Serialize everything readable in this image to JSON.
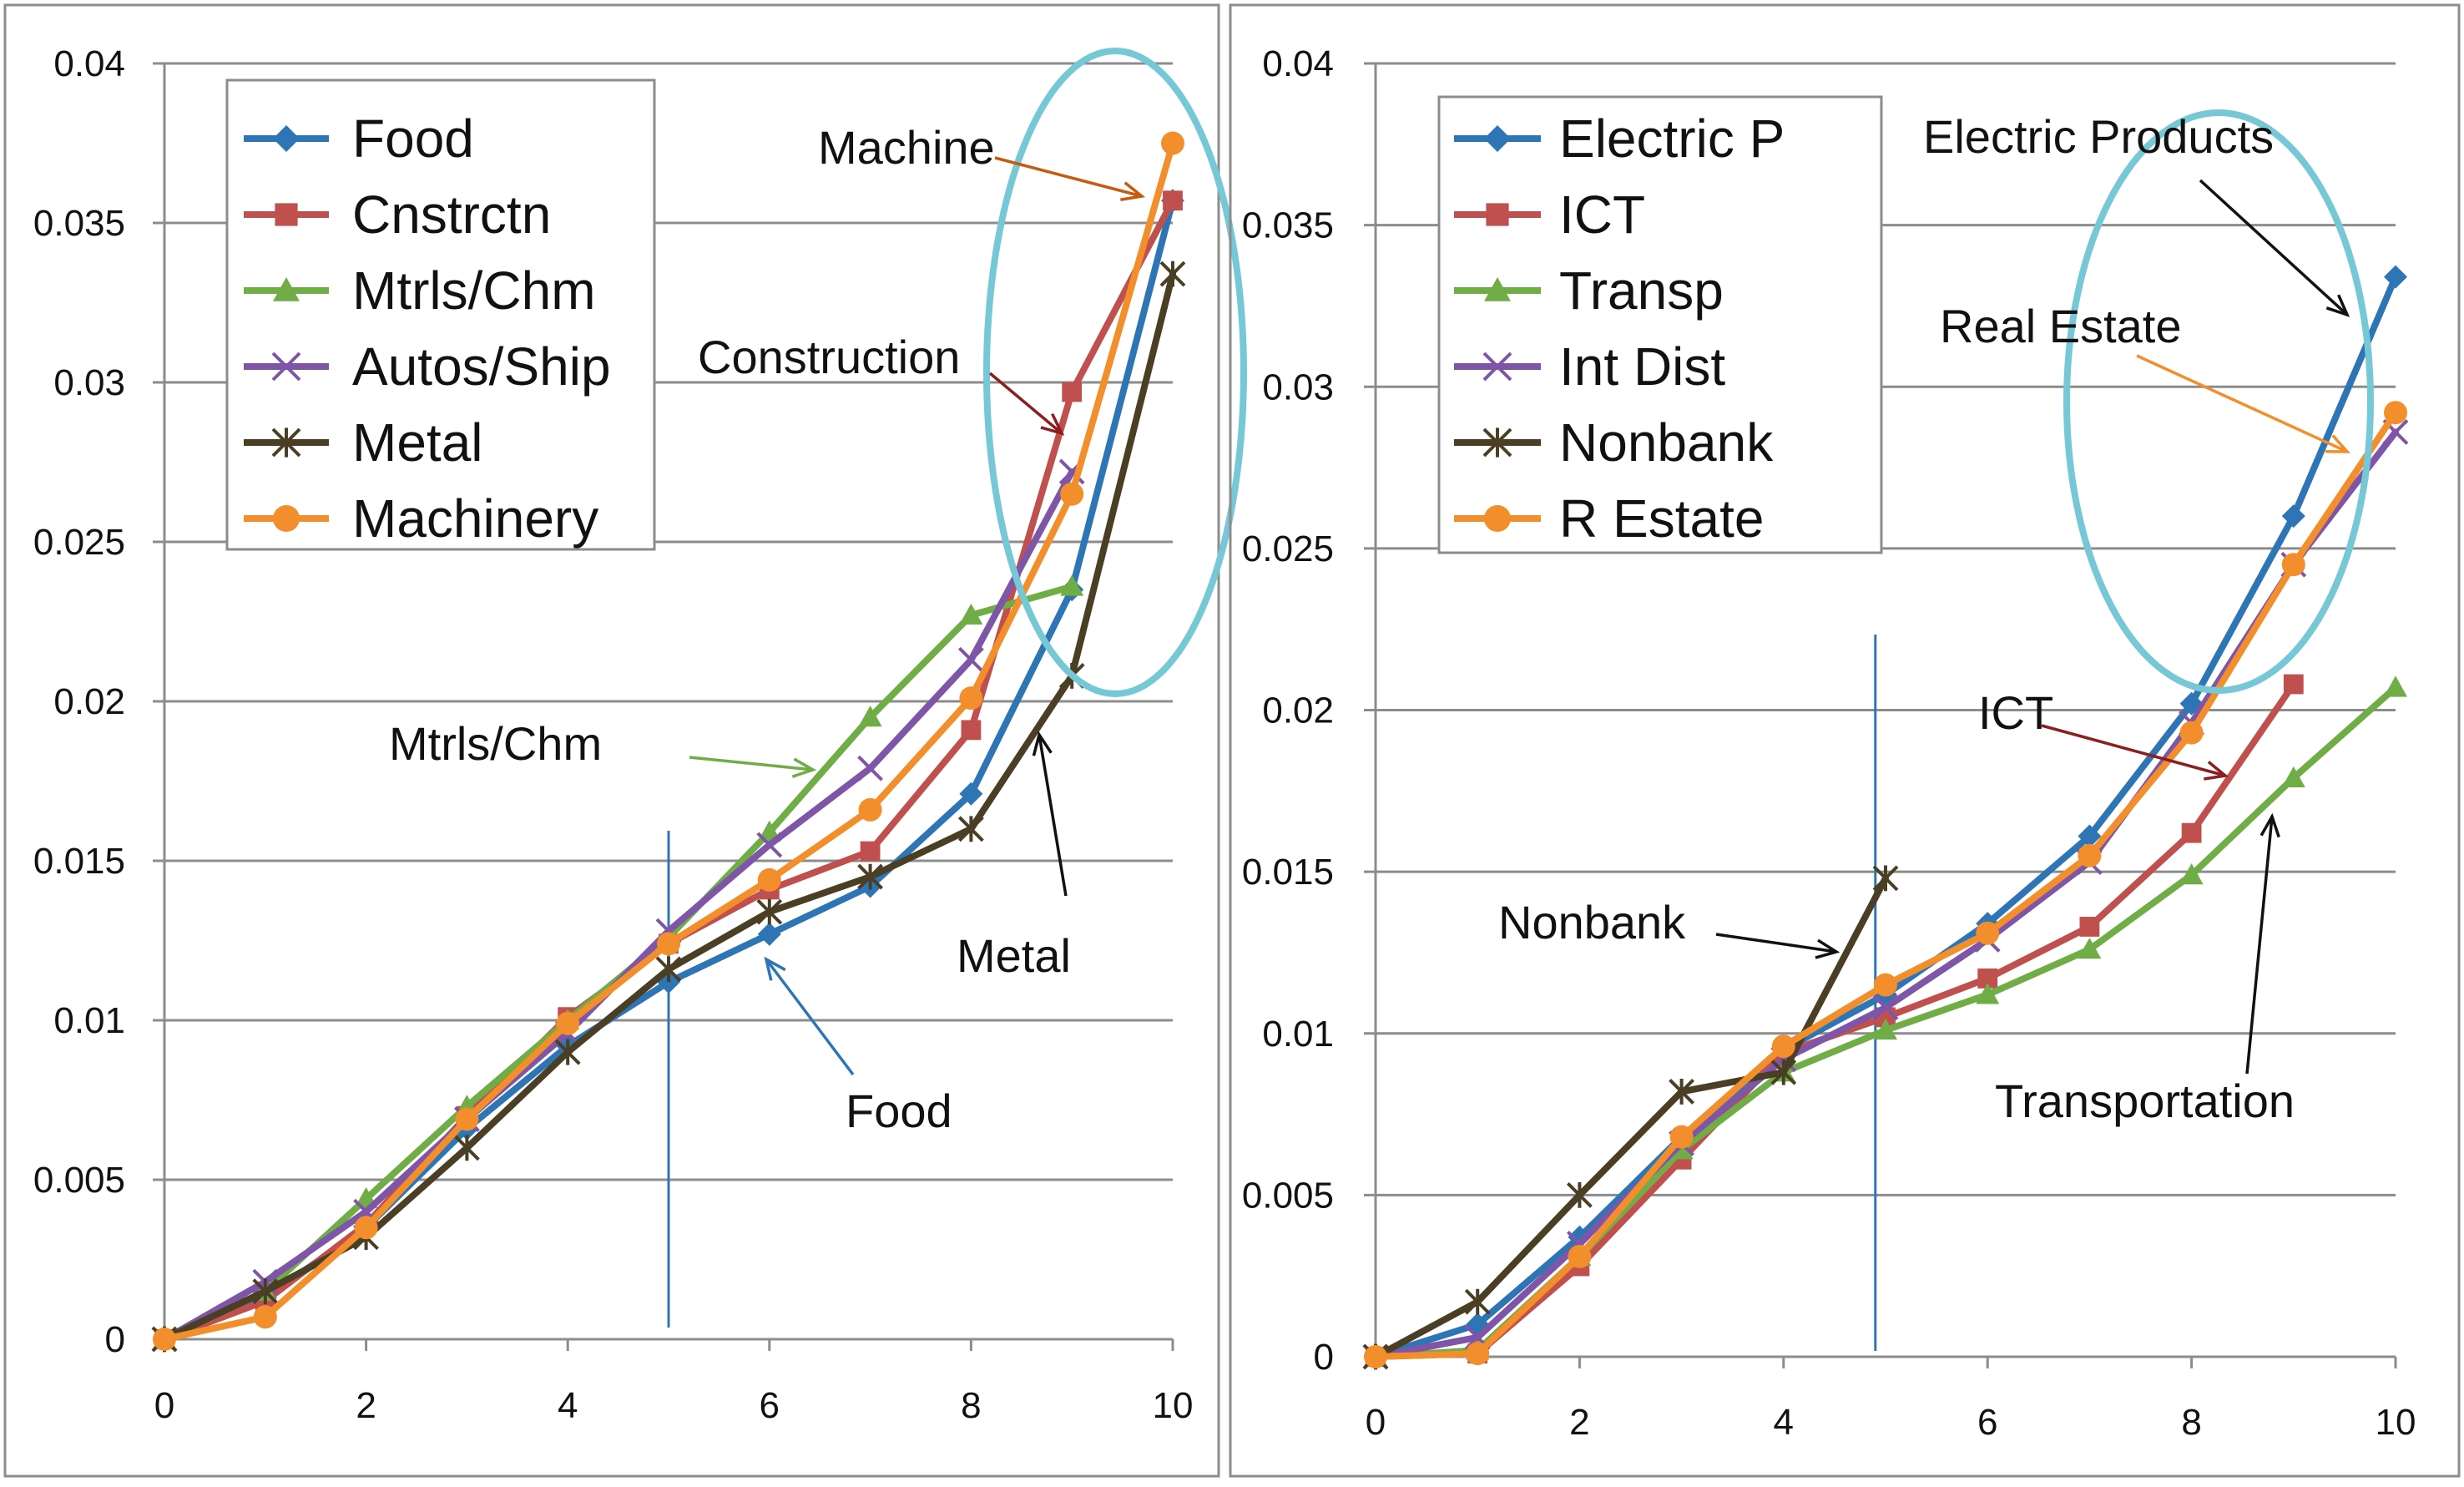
{
  "chart_data": [
    {
      "type": "line",
      "x": [
        0,
        1,
        2,
        3,
        4,
        5,
        6,
        7,
        8,
        9,
        10
      ],
      "xlim": [
        0,
        10
      ],
      "ylim": [
        0,
        0.04
      ],
      "x_ticks": [
        "0",
        "2",
        "4",
        "6",
        "8",
        "10"
      ],
      "y_ticks": [
        "0",
        "0.005",
        "0.01",
        "0.015",
        "0.02",
        "0.025",
        "0.03",
        "0.035",
        "0.04"
      ],
      "legend_position": "top-left",
      "vertical_line_x": 5,
      "series": [
        {
          "name": "Food",
          "legend": "Food",
          "color": "#2e75b6",
          "marker": "diamond",
          "values": [
            0,
            0.0013,
            0.0035,
            0.0066,
            0.0092,
            0.0112,
            0.0127,
            0.0142,
            0.0171,
            0.0235,
            0.0357
          ]
        },
        {
          "name": "Cnstrctn",
          "legend": "Cnstrctn",
          "color": "#c0504d",
          "marker": "square",
          "values": [
            0,
            0.0012,
            0.0036,
            0.007,
            0.0101,
            0.0124,
            0.0141,
            0.0153,
            0.0191,
            0.0297,
            0.0357
          ]
        },
        {
          "name": "Mtrls/Chm",
          "legend": " Mtrls/Chm",
          "color": "#70ad47",
          "marker": "triangle",
          "values": [
            0,
            0.0015,
            0.0044,
            0.0073,
            0.01,
            0.0126,
            0.0159,
            0.0195,
            0.0227,
            0.0236,
            null
          ]
        },
        {
          "name": "Autos/Ship",
          "legend": "Autos/Ship",
          "color": "#7f55a8",
          "marker": "x",
          "values": [
            0,
            0.0018,
            0.004,
            0.0069,
            0.0096,
            0.0128,
            0.0155,
            0.0179,
            0.0213,
            0.0272,
            null
          ]
        },
        {
          "name": "Metal",
          "legend": "Metal",
          "color": "#4a3f25",
          "marker": "star",
          "values": [
            0,
            0.0015,
            0.0032,
            0.006,
            0.009,
            0.0116,
            0.0134,
            0.0145,
            0.016,
            0.0208,
            0.0334
          ]
        },
        {
          "name": "Machinery",
          "legend": "Machinery",
          "color": "#f28e2b",
          "marker": "circle",
          "values": [
            0,
            0.0007,
            0.0035,
            0.0069,
            0.0099,
            0.0124,
            0.0144,
            0.0166,
            0.0201,
            0.0265,
            0.0375
          ]
        }
      ],
      "annotations": [
        {
          "label": "Machine",
          "color": "#c55a11"
        },
        {
          "label": "Construction",
          "color": "#8b1f1f"
        },
        {
          "label": "Mtrls/Chm",
          "color": "#70ad47"
        },
        {
          "label": "Metal",
          "color": "#111111"
        },
        {
          "label": "Food",
          "color": "#2e75b6"
        }
      ]
    },
    {
      "type": "line",
      "x": [
        0,
        1,
        2,
        3,
        4,
        5,
        6,
        7,
        8,
        9,
        10
      ],
      "xlim": [
        0,
        10
      ],
      "ylim": [
        0,
        0.04
      ],
      "x_ticks": [
        "0",
        "2",
        "4",
        "6",
        "8",
        "10"
      ],
      "y_ticks": [
        "0",
        "0.005",
        "0.01",
        "0.015",
        "0.02",
        "0.025",
        "0.03",
        "0.035",
        "0.04"
      ],
      "legend_position": "top-left",
      "vertical_line_x": 4.9,
      "series": [
        {
          "name": "Electric P",
          "legend": "Electric P",
          "color": "#2e75b6",
          "marker": "diamond",
          "values": [
            0,
            0.001,
            0.0037,
            0.0068,
            0.0095,
            0.0112,
            0.0134,
            0.0161,
            0.0202,
            0.026,
            0.0334
          ]
        },
        {
          "name": "ICT",
          "legend": "ICT",
          "color": "#c0504d",
          "marker": "square",
          "values": [
            0,
            0.0001,
            0.0028,
            0.0061,
            0.0094,
            0.0105,
            0.0117,
            0.0133,
            0.0162,
            0.0208,
            null
          ]
        },
        {
          "name": "Transp",
          "legend": "Transp",
          "color": "#70ad47",
          "marker": "triangle",
          "values": [
            0,
            0.0002,
            0.0031,
            0.0064,
            0.0088,
            0.0101,
            0.0112,
            0.0126,
            0.0149,
            0.0179,
            0.0207
          ]
        },
        {
          "name": "Int Dist",
          "legend": "Int Dist",
          "color": "#7f55a8",
          "marker": "x",
          "values": [
            0,
            0.0006,
            0.0035,
            0.0066,
            0.0092,
            0.0108,
            0.0129,
            0.0153,
            0.0196,
            0.0245,
            0.0286
          ]
        },
        {
          "name": "Nonbank",
          "legend": "Nonbank",
          "color": "#4a3f25",
          "marker": "star",
          "values": [
            0,
            0.0017,
            0.005,
            0.0082,
            0.0088,
            0.0148,
            null,
            null,
            null,
            null,
            null
          ]
        },
        {
          "name": "R Estate",
          "legend": "R Estate",
          "color": "#f28e2b",
          "marker": "circle",
          "values": [
            0,
            0.0001,
            0.0031,
            0.0068,
            0.0096,
            0.0115,
            0.0131,
            0.0155,
            0.0193,
            0.0245,
            0.0292
          ]
        }
      ],
      "annotations": [
        {
          "label": "Electric Products",
          "color": "#111111"
        },
        {
          "label": "Real Estate",
          "color": "#f28e2b"
        },
        {
          "label": "ICT",
          "color": "#8b1f1f"
        },
        {
          "label": "Nonbank",
          "color": "#111111"
        },
        {
          "label": "Transportation",
          "color": "#111111"
        }
      ]
    }
  ]
}
